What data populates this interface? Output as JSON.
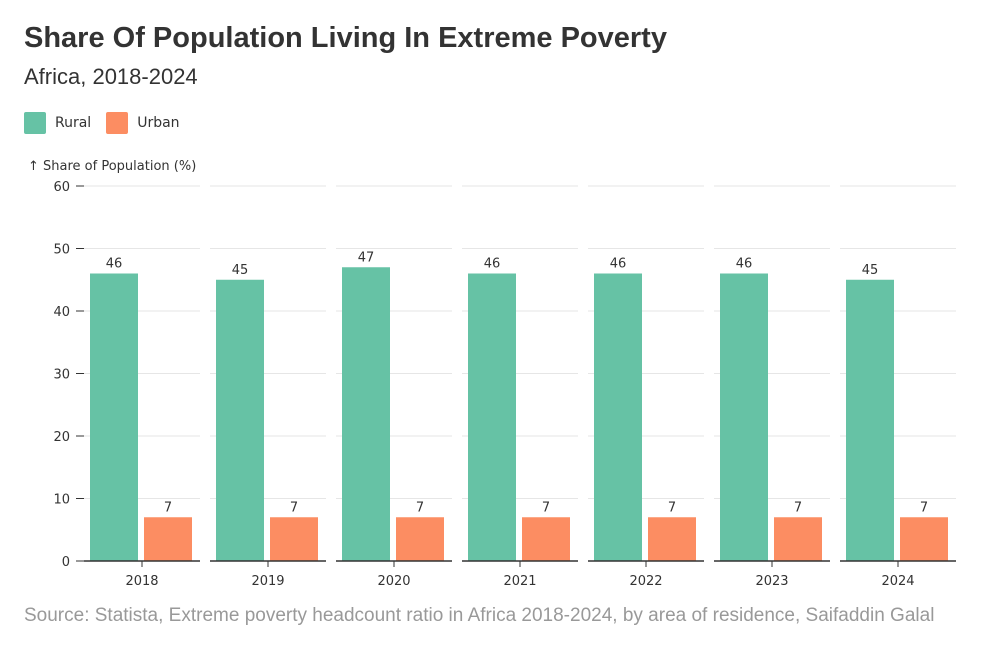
{
  "title": "Share Of Population Living In Extreme Poverty",
  "subtitle": "Africa, 2018-2024",
  "source": "Source: Statista, Extreme poverty headcount ratio in Africa 2018-2024, by area of residence, Saifaddin Galal",
  "colors": {
    "rural": "#66c2a5",
    "urban": "#fc8d62"
  },
  "chart_data": {
    "type": "bar",
    "categories": [
      "2018",
      "2019",
      "2020",
      "2021",
      "2022",
      "2023",
      "2024"
    ],
    "series": [
      {
        "name": "Rural",
        "values": [
          46,
          45,
          47,
          46,
          46,
          46,
          45
        ]
      },
      {
        "name": "Urban",
        "values": [
          7,
          7,
          7,
          7,
          7,
          7,
          7
        ]
      }
    ],
    "ylabel": "↑ Share of Population (%)",
    "ylim": [
      0,
      60
    ],
    "yticks": [
      "0",
      "10",
      "20",
      "30",
      "40",
      "50",
      "60"
    ],
    "grid": true,
    "legend_position": "top-left"
  }
}
